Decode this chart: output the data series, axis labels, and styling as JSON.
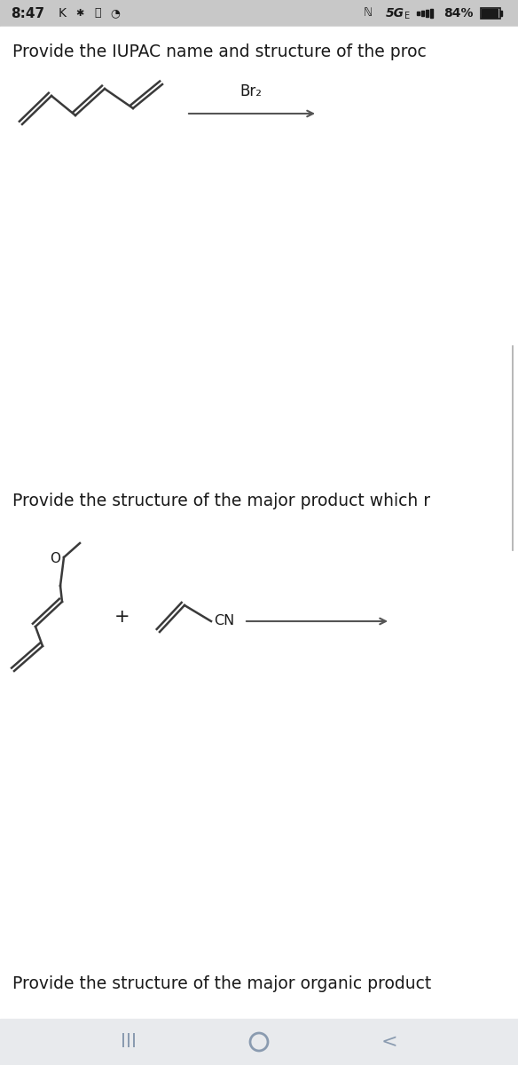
{
  "white_bg": "#ffffff",
  "status_bar_bg": "#c8c8c8",
  "text_color": "#1a1a1a",
  "nav_color": "#8a9bb0",
  "nav_bar_bg": "#e8eaed",
  "line_color": "#3a3a3a",
  "arrow_color": "#555555",
  "right_border_color": "#aaaaaa",
  "section1_text": "Provide the IUPAC name and structure of the proc",
  "section2_text": "Provide the structure of the major product which r",
  "section3_text": "Provide the structure of the major organic product",
  "br2_label": "Br₂",
  "cn_label": "CN",
  "o_label": "O"
}
